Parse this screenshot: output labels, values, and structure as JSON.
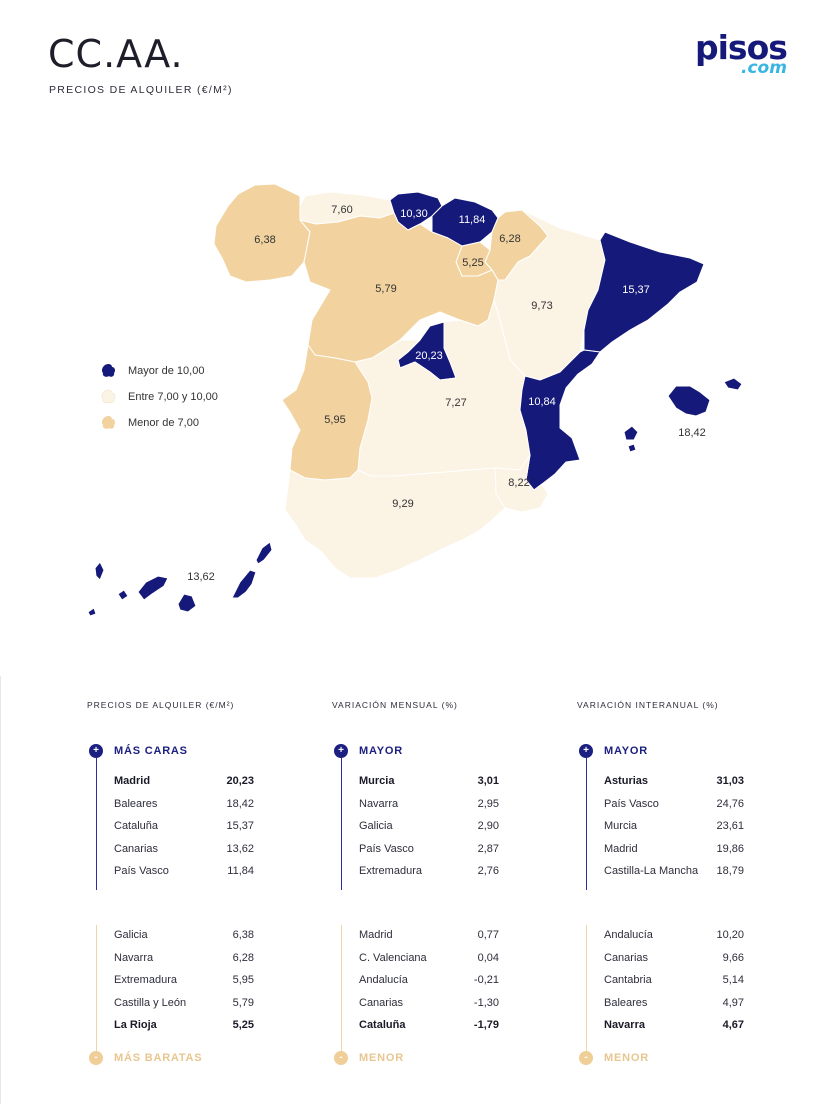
{
  "header": {
    "title": "CC.AA.",
    "subtitle": "PRECIOS DE ALQUILER (€/M²)",
    "logo_main": "pisos",
    "logo_sub": ".com"
  },
  "colors": {
    "high": "#15197a",
    "mid": "#fbf3e4",
    "low": "#f2d3a0",
    "accent_bottom": "#e8c68f"
  },
  "legend": [
    {
      "label": "Mayor de 10,00",
      "class": "high"
    },
    {
      "label": "Entre 7,00 y 10,00",
      "class": "mid"
    },
    {
      "label": "Menor de 7,00",
      "class": "low"
    }
  ],
  "chart_data": {
    "type": "choropleth map",
    "title": "CC.AA.",
    "subtitle": "PRECIOS DE ALQUILER (€/M²)",
    "regions": [
      {
        "label": "7,60",
        "class": "mid"
      },
      {
        "label": "10,30",
        "class": "high"
      },
      {
        "label": "11,84",
        "class": "high"
      },
      {
        "label": "6,38",
        "class": "low"
      },
      {
        "label": "6,28",
        "class": "low"
      },
      {
        "label": "5,25",
        "class": "low"
      },
      {
        "label": "5,79",
        "class": "low"
      },
      {
        "label": "9,73",
        "class": "mid"
      },
      {
        "label": "15,37",
        "class": "high"
      },
      {
        "label": "20,23",
        "class": "high"
      },
      {
        "label": "7,27",
        "class": "mid"
      },
      {
        "label": "10,84",
        "class": "high"
      },
      {
        "label": "18,42",
        "class": "high"
      },
      {
        "label": "5,95",
        "class": "low"
      },
      {
        "label": "8,22",
        "class": "mid"
      },
      {
        "label": "9,29",
        "class": "mid"
      },
      {
        "label": "13,62",
        "class": "high"
      }
    ]
  },
  "tables": [
    {
      "heading": "PRECIOS DE ALQUILER (€/M²)",
      "top_label": "MÁS CARAS",
      "bottom_label": "MÁS BARATAS",
      "top": [
        {
          "name": "Madrid",
          "value": "20,23",
          "bold": true
        },
        {
          "name": "Baleares",
          "value": "18,42"
        },
        {
          "name": "Cataluña",
          "value": "15,37"
        },
        {
          "name": "Canarias",
          "value": "13,62"
        },
        {
          "name": "País Vasco",
          "value": "11,84"
        }
      ],
      "bottom": [
        {
          "name": "Galicia",
          "value": "6,38"
        },
        {
          "name": "Navarra",
          "value": "6,28"
        },
        {
          "name": "Extremadura",
          "value": "5,95"
        },
        {
          "name": "Castilla y León",
          "value": "5,79"
        },
        {
          "name": "La Rioja",
          "value": "5,25",
          "bold": true
        }
      ]
    },
    {
      "heading": "VARIACIÓN MENSUAL (%)",
      "top_label": "MAYOR",
      "bottom_label": "MENOR",
      "top": [
        {
          "name": "Murcia",
          "value": "3,01",
          "bold": true
        },
        {
          "name": "Navarra",
          "value": "2,95"
        },
        {
          "name": "Galicia",
          "value": "2,90"
        },
        {
          "name": "País Vasco",
          "value": "2,87"
        },
        {
          "name": "Extremadura",
          "value": "2,76"
        }
      ],
      "bottom": [
        {
          "name": "Madrid",
          "value": "0,77"
        },
        {
          "name": "C. Valenciana",
          "value": "0,04"
        },
        {
          "name": "Andalucía",
          "value": "-0,21"
        },
        {
          "name": "Canarias",
          "value": "-1,30"
        },
        {
          "name": "Cataluña",
          "value": "-1,79",
          "bold": true
        }
      ]
    },
    {
      "heading": "VARIACIÓN INTERANUAL (%)",
      "top_label": "MAYOR",
      "bottom_label": "MENOR",
      "top": [
        {
          "name": "Asturias",
          "value": "31,03",
          "bold": true
        },
        {
          "name": "País Vasco",
          "value": "24,76"
        },
        {
          "name": "Murcia",
          "value": "23,61"
        },
        {
          "name": "Madrid",
          "value": "19,86"
        },
        {
          "name": "Castilla-La Mancha",
          "value": "18,79"
        }
      ],
      "bottom": [
        {
          "name": "Andalucía",
          "value": "10,20"
        },
        {
          "name": "Canarias",
          "value": "9,66"
        },
        {
          "name": "Cantabria",
          "value": "5,14"
        },
        {
          "name": "Baleares",
          "value": "4,97"
        },
        {
          "name": "Navarra",
          "value": "4,67",
          "bold": true
        }
      ]
    }
  ]
}
